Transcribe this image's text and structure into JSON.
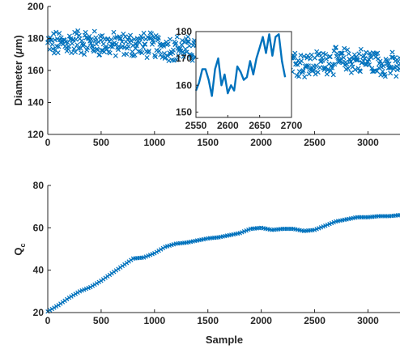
{
  "colors": {
    "series": "#0072bd",
    "axes": "#262626",
    "background": "#ffffff"
  },
  "chart_data": [
    {
      "type": "scatter",
      "marker": "x",
      "xlabel": "",
      "ylabel_main": "Diameter (",
      "ylabel_mu": "μ",
      "ylabel_unit": "m)",
      "xlim": [
        0,
        3300
      ],
      "ylim": [
        120,
        200
      ],
      "xticks": [
        0,
        500,
        1000,
        1500,
        2000,
        2500,
        3000
      ],
      "yticks": [
        120,
        140,
        160,
        180,
        200
      ],
      "grid": false,
      "x_range": [
        0,
        3300
      ],
      "noise_amplitude": 7,
      "trend": [
        [
          0,
          176
        ],
        [
          300,
          178
        ],
        [
          600,
          176
        ],
        [
          900,
          176
        ],
        [
          1200,
          174
        ],
        [
          1500,
          172
        ],
        [
          1800,
          170
        ],
        [
          2100,
          169
        ],
        [
          2300,
          166
        ],
        [
          2450,
          163
        ],
        [
          2600,
          166
        ],
        [
          2800,
          166
        ],
        [
          3000,
          166
        ],
        [
          3300,
          162
        ]
      ],
      "inset": {
        "type": "line",
        "xlim": [
          2550,
          2700
        ],
        "ylim": [
          148,
          180
        ],
        "xticks": [
          2550,
          2600,
          2650,
          2700
        ],
        "yticks": [
          150,
          160,
          170,
          180
        ],
        "x": [
          2550,
          2555,
          2560,
          2565,
          2570,
          2575,
          2580,
          2585,
          2590,
          2595,
          2600,
          2605,
          2610,
          2615,
          2620,
          2625,
          2630,
          2635,
          2640,
          2645,
          2650,
          2655,
          2660,
          2665,
          2670,
          2675,
          2680,
          2685,
          2690
        ],
        "y": [
          158,
          161,
          166,
          166,
          162,
          156,
          166,
          170,
          160,
          164,
          157,
          160,
          158,
          167,
          165,
          162,
          163,
          169,
          164,
          170,
          174,
          178,
          172,
          179,
          171,
          178,
          179,
          169,
          163
        ]
      }
    },
    {
      "type": "scatter",
      "marker": "x-line",
      "xlabel": "Sample",
      "ylabel_main": "Q",
      "ylabel_sub": "c",
      "xlim": [
        0,
        3300
      ],
      "ylim": [
        20,
        80
      ],
      "xticks": [
        0,
        500,
        1000,
        1500,
        2000,
        2500,
        3000
      ],
      "yticks": [
        20,
        40,
        60,
        80
      ],
      "grid": false,
      "x": [
        0,
        100,
        200,
        300,
        400,
        500,
        600,
        700,
        800,
        900,
        1000,
        1100,
        1200,
        1300,
        1400,
        1500,
        1600,
        1700,
        1800,
        1900,
        2000,
        2100,
        2200,
        2300,
        2400,
        2500,
        2600,
        2700,
        2800,
        2900,
        3000,
        3100,
        3200,
        3300
      ],
      "y": [
        20.5,
        23.5,
        27,
        30,
        32,
        35,
        38.5,
        42,
        45.5,
        46,
        48,
        51,
        52.5,
        53,
        54,
        55,
        55.5,
        56.5,
        57.5,
        59.5,
        60,
        59,
        59.5,
        59.5,
        58.5,
        59,
        61,
        63,
        64,
        65,
        65,
        65.5,
        65.5,
        66
      ]
    }
  ]
}
